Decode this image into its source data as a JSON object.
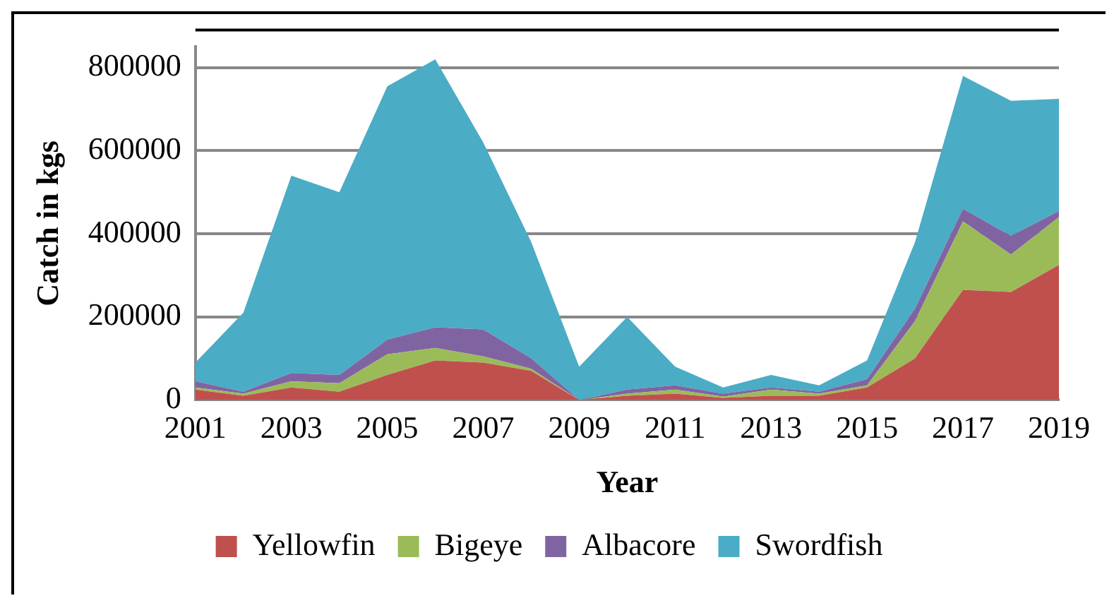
{
  "chart_data": {
    "type": "area",
    "stacked": true,
    "xlabel": "Year",
    "ylabel": "Catch in kgs",
    "categories": [
      "2001",
      null,
      "2003",
      null,
      "2005",
      null,
      "2007",
      null,
      "2009",
      null,
      "2011",
      null,
      "2013",
      null,
      "2015",
      null,
      "2017",
      null,
      "2019"
    ],
    "series": [
      {
        "name": "Yellowfin",
        "color": "#c0504d",
        "values": [
          25000,
          10000,
          30000,
          20000,
          60000,
          95000,
          90000,
          70000,
          0,
          10000,
          15000,
          5000,
          10000,
          10000,
          30000,
          100000,
          265000,
          260000,
          325000
        ]
      },
      {
        "name": "Bigeye",
        "color": "#9bbb59",
        "values": [
          5000,
          5000,
          15000,
          20000,
          50000,
          30000,
          15000,
          5000,
          0,
          5000,
          10000,
          3000,
          15000,
          5000,
          5000,
          90000,
          165000,
          90000,
          115000
        ]
      },
      {
        "name": "Albacore",
        "color": "#8064a2",
        "values": [
          15000,
          5000,
          20000,
          20000,
          35000,
          50000,
          65000,
          25000,
          0,
          10000,
          10000,
          7000,
          5000,
          5000,
          15000,
          30000,
          30000,
          45000,
          15000
        ]
      },
      {
        "name": "Swordfish",
        "color": "#4bacc6",
        "values": [
          45000,
          190000,
          475000,
          440000,
          610000,
          645000,
          450000,
          280000,
          80000,
          175000,
          45000,
          15000,
          30000,
          15000,
          45000,
          160000,
          320000,
          325000,
          270000
        ]
      }
    ],
    "ylim": [
      0,
      850000
    ],
    "yticks": [
      0,
      200000,
      400000,
      600000,
      800000
    ],
    "grid": "y",
    "legend": "bottom"
  }
}
